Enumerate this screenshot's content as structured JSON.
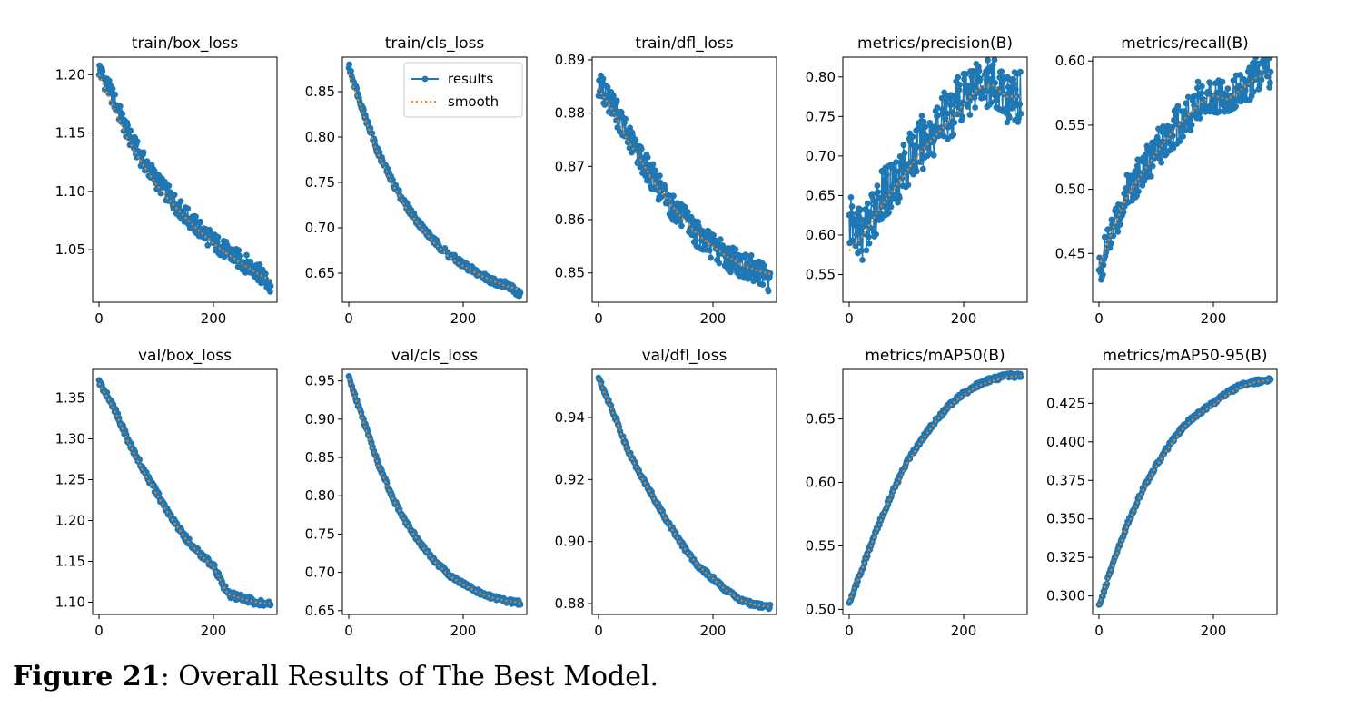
{
  "figure": {
    "caption_label": "Figure 21",
    "caption_text": ": Overall Results of The Best Model.",
    "legend": [
      "results",
      "smooth"
    ],
    "colors": {
      "results": "#1f77b4",
      "smooth": "#ff7f0e"
    }
  },
  "chart_data": [
    {
      "type": "line",
      "title": "train/box_loss",
      "xlim": [
        0,
        300
      ],
      "xticks": [
        0,
        200
      ],
      "ylim": [
        1.005,
        1.215
      ],
      "yticks": [
        "1.05",
        "1.10",
        "1.15",
        "1.20"
      ],
      "x": [
        0,
        25,
        50,
        75,
        100,
        125,
        150,
        175,
        200,
        225,
        250,
        275,
        300
      ],
      "series": [
        {
          "name": "results",
          "values": [
            1.205,
            1.18,
            1.15,
            1.128,
            1.11,
            1.095,
            1.08,
            1.068,
            1.057,
            1.048,
            1.04,
            1.033,
            1.018
          ],
          "noise": 0.008
        },
        {
          "name": "smooth",
          "values": [
            1.2,
            1.172,
            1.145,
            1.124,
            1.106,
            1.091,
            1.078,
            1.066,
            1.055,
            1.046,
            1.038,
            1.03,
            1.024
          ]
        }
      ]
    },
    {
      "type": "line",
      "title": "train/cls_loss",
      "xlim": [
        0,
        300
      ],
      "xticks": [
        0,
        200
      ],
      "ylim": [
        0.618,
        0.888
      ],
      "yticks": [
        "0.65",
        "0.70",
        "0.75",
        "0.80",
        "0.85"
      ],
      "x": [
        0,
        25,
        50,
        75,
        100,
        125,
        150,
        175,
        200,
        225,
        250,
        275,
        300
      ],
      "series": [
        {
          "name": "results",
          "values": [
            0.878,
            0.83,
            0.785,
            0.752,
            0.725,
            0.703,
            0.685,
            0.67,
            0.66,
            0.65,
            0.642,
            0.637,
            0.627
          ],
          "noise": 0.004
        },
        {
          "name": "smooth",
          "values": [
            0.87,
            0.826,
            0.783,
            0.75,
            0.722,
            0.701,
            0.683,
            0.668,
            0.658,
            0.649,
            0.642,
            0.636,
            0.632
          ]
        }
      ]
    },
    {
      "type": "line",
      "title": "train/dfl_loss",
      "xlim": [
        0,
        300
      ],
      "xticks": [
        0,
        200
      ],
      "ylim": [
        0.8445,
        0.8905
      ],
      "yticks": [
        "0.85",
        "0.86",
        "0.87",
        "0.88",
        "0.89"
      ],
      "x": [
        0,
        25,
        50,
        75,
        100,
        125,
        150,
        175,
        200,
        225,
        250,
        275,
        300
      ],
      "series": [
        {
          "name": "results",
          "values": [
            0.8855,
            0.8815,
            0.876,
            0.8715,
            0.867,
            0.863,
            0.86,
            0.857,
            0.855,
            0.853,
            0.8515,
            0.8505,
            0.848
          ],
          "noise": 0.0025
        },
        {
          "name": "smooth",
          "values": [
            0.8845,
            0.8805,
            0.875,
            0.871,
            0.8665,
            0.863,
            0.8598,
            0.857,
            0.855,
            0.853,
            0.8515,
            0.8505,
            0.8498
          ]
        }
      ]
    },
    {
      "type": "line",
      "title": "metrics/precision(B)",
      "xlim": [
        0,
        300
      ],
      "xticks": [
        0,
        200
      ],
      "ylim": [
        0.515,
        0.825
      ],
      "yticks": [
        "0.55",
        "0.60",
        "0.65",
        "0.70",
        "0.75",
        "0.80"
      ],
      "x": [
        0,
        25,
        50,
        75,
        100,
        125,
        150,
        175,
        200,
        225,
        250,
        275,
        300
      ],
      "series": [
        {
          "name": "results",
          "values": [
            0.615,
            0.6,
            0.64,
            0.665,
            0.69,
            0.715,
            0.735,
            0.755,
            0.775,
            0.8,
            0.79,
            0.775,
            0.775
          ],
          "noise": 0.035
        },
        {
          "name": "smooth",
          "values": [
            0.58,
            0.6,
            0.63,
            0.655,
            0.68,
            0.705,
            0.725,
            0.745,
            0.765,
            0.785,
            0.79,
            0.775,
            0.775
          ]
        }
      ]
    },
    {
      "type": "line",
      "title": "metrics/recall(B)",
      "xlim": [
        0,
        300
      ],
      "xticks": [
        0,
        200
      ],
      "ylim": [
        0.412,
        0.603
      ],
      "yticks": [
        "0.45",
        "0.50",
        "0.55",
        "0.60"
      ],
      "x": [
        0,
        25,
        50,
        75,
        100,
        125,
        150,
        175,
        200,
        225,
        250,
        275,
        300
      ],
      "series": [
        {
          "name": "results",
          "values": [
            0.435,
            0.47,
            0.5,
            0.515,
            0.53,
            0.545,
            0.555,
            0.57,
            0.575,
            0.57,
            0.58,
            0.588,
            0.592
          ],
          "noise": 0.015
        },
        {
          "name": "smooth",
          "values": [
            0.44,
            0.47,
            0.495,
            0.512,
            0.528,
            0.543,
            0.555,
            0.567,
            0.573,
            0.57,
            0.578,
            0.587,
            0.591
          ]
        }
      ]
    },
    {
      "type": "line",
      "title": "val/box_loss",
      "xlim": [
        0,
        300
      ],
      "xticks": [
        0,
        200
      ],
      "ylim": [
        1.085,
        1.385
      ],
      "yticks": [
        "1.10",
        "1.15",
        "1.20",
        "1.25",
        "1.30",
        "1.35"
      ],
      "x": [
        0,
        25,
        50,
        75,
        100,
        125,
        150,
        175,
        200,
        225,
        250,
        275,
        300
      ],
      "series": [
        {
          "name": "results",
          "values": [
            1.37,
            1.34,
            1.3,
            1.265,
            1.235,
            1.205,
            1.18,
            1.16,
            1.145,
            1.11,
            1.105,
            1.1,
            1.097
          ],
          "noise": 0.004
        },
        {
          "name": "smooth",
          "values": [
            1.368,
            1.338,
            1.298,
            1.263,
            1.233,
            1.204,
            1.179,
            1.159,
            1.143,
            1.11,
            1.104,
            1.1,
            1.098
          ]
        }
      ]
    },
    {
      "type": "line",
      "title": "val/cls_loss",
      "xlim": [
        0,
        300
      ],
      "xticks": [
        0,
        200
      ],
      "ylim": [
        0.645,
        0.965
      ],
      "yticks": [
        "0.65",
        "0.70",
        "0.75",
        "0.80",
        "0.85",
        "0.90",
        "0.95"
      ],
      "x": [
        0,
        25,
        50,
        75,
        100,
        125,
        150,
        175,
        200,
        225,
        250,
        275,
        300
      ],
      "series": [
        {
          "name": "results",
          "values": [
            0.955,
            0.9,
            0.845,
            0.8,
            0.765,
            0.738,
            0.715,
            0.697,
            0.685,
            0.675,
            0.668,
            0.663,
            0.66
          ],
          "noise": 0.003
        },
        {
          "name": "smooth",
          "values": [
            0.953,
            0.898,
            0.843,
            0.799,
            0.764,
            0.737,
            0.714,
            0.696,
            0.684,
            0.674,
            0.667,
            0.663,
            0.66
          ]
        }
      ]
    },
    {
      "type": "line",
      "title": "val/dfl_loss",
      "xlim": [
        0,
        300
      ],
      "xticks": [
        0,
        200
      ],
      "ylim": [
        0.8765,
        0.9555
      ],
      "yticks": [
        "0.88",
        "0.90",
        "0.92",
        "0.94"
      ],
      "x": [
        0,
        25,
        50,
        75,
        100,
        125,
        150,
        175,
        200,
        225,
        250,
        275,
        300
      ],
      "series": [
        {
          "name": "results",
          "values": [
            0.953,
            0.942,
            0.93,
            0.921,
            0.913,
            0.905,
            0.898,
            0.892,
            0.888,
            0.884,
            0.881,
            0.8795,
            0.879
          ],
          "noise": 0.0008
        },
        {
          "name": "smooth",
          "values": [
            0.9525,
            0.9415,
            0.9297,
            0.9208,
            0.9128,
            0.9048,
            0.8978,
            0.892,
            0.888,
            0.884,
            0.881,
            0.8795,
            0.879
          ]
        }
      ]
    },
    {
      "type": "line",
      "title": "metrics/mAP50(B)",
      "xlim": [
        0,
        300
      ],
      "xticks": [
        0,
        200
      ],
      "ylim": [
        0.496,
        0.689
      ],
      "yticks": [
        "0.50",
        "0.55",
        "0.60",
        "0.65"
      ],
      "x": [
        0,
        25,
        50,
        75,
        100,
        125,
        150,
        175,
        200,
        225,
        250,
        275,
        300
      ],
      "series": [
        {
          "name": "results",
          "values": [
            0.505,
            0.535,
            0.565,
            0.592,
            0.615,
            0.633,
            0.648,
            0.661,
            0.67,
            0.677,
            0.681,
            0.684,
            0.684
          ],
          "noise": 0.002
        },
        {
          "name": "smooth",
          "values": [
            0.506,
            0.535,
            0.564,
            0.591,
            0.614,
            0.632,
            0.647,
            0.66,
            0.669,
            0.676,
            0.68,
            0.683,
            0.684
          ]
        }
      ]
    },
    {
      "type": "line",
      "title": "metrics/mAP50-95(B)",
      "xlim": [
        0,
        300
      ],
      "xticks": [
        0,
        200
      ],
      "ylim": [
        0.288,
        0.447
      ],
      "yticks": [
        "0.300",
        "0.325",
        "0.350",
        "0.375",
        "0.400",
        "0.425"
      ],
      "x": [
        0,
        25,
        50,
        75,
        100,
        125,
        150,
        175,
        200,
        225,
        250,
        275,
        300
      ],
      "series": [
        {
          "name": "results",
          "values": [
            0.293,
            0.322,
            0.347,
            0.368,
            0.385,
            0.399,
            0.411,
            0.419,
            0.425,
            0.432,
            0.437,
            0.439,
            0.44
          ],
          "noise": 0.0015
        },
        {
          "name": "smooth",
          "values": [
            0.294,
            0.321,
            0.346,
            0.367,
            0.384,
            0.398,
            0.41,
            0.418,
            0.424,
            0.431,
            0.436,
            0.439,
            0.44
          ]
        }
      ]
    }
  ]
}
